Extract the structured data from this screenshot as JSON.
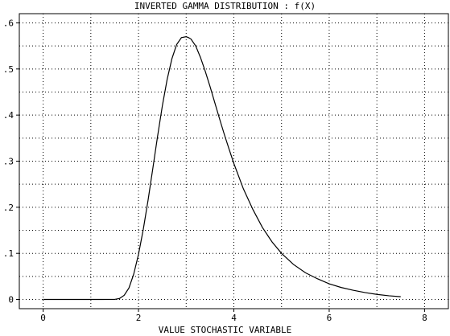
{
  "chart_data": {
    "type": "line",
    "title": "INVERTED GAMMA DISTRIBUTION : f(X)",
    "xlabel": "VALUE STOCHASTIC VARIABLE",
    "ylabel": "",
    "xlim": [
      -0.5,
      8.5
    ],
    "ylim": [
      -0.02,
      0.62
    ],
    "x_ticks": [
      0,
      2,
      4,
      6,
      8
    ],
    "x_tick_labels": [
      "0",
      "2",
      "4",
      "6",
      "8"
    ],
    "y_ticks": [
      0,
      0.1,
      0.2,
      0.3,
      0.4,
      0.5,
      0.6
    ],
    "y_tick_labels": [
      "0",
      ".1",
      ".2",
      ".3",
      ".4",
      ".5",
      ".6"
    ],
    "grid": true,
    "series": [
      {
        "x": [
          0,
          0.5,
          1.0,
          1.5,
          1.6,
          1.7,
          1.8,
          1.9,
          2.0,
          2.1,
          2.2,
          2.3,
          2.4,
          2.5,
          2.6,
          2.7,
          2.8,
          2.9,
          3.0,
          3.05,
          3.1,
          3.2,
          3.3,
          3.4,
          3.5,
          3.6,
          3.7,
          3.8,
          3.9,
          4.0,
          4.2,
          4.4,
          4.6,
          4.8,
          5.0,
          5.25,
          5.5,
          5.75,
          6.0,
          6.25,
          6.5,
          6.75,
          7.0,
          7.25,
          7.5
        ],
        "y": [
          0,
          0,
          0,
          0.0002,
          0.002,
          0.009,
          0.025,
          0.055,
          0.098,
          0.152,
          0.215,
          0.284,
          0.354,
          0.42,
          0.477,
          0.522,
          0.553,
          0.568,
          0.57,
          0.568,
          0.565,
          0.55,
          0.525,
          0.495,
          0.462,
          0.427,
          0.392,
          0.358,
          0.326,
          0.295,
          0.24,
          0.195,
          0.156,
          0.125,
          0.1,
          0.076,
          0.058,
          0.045,
          0.034,
          0.026,
          0.02,
          0.015,
          0.011,
          0.008,
          0.006
        ]
      }
    ]
  },
  "colors": {
    "line": "#000000",
    "grid": "#000000",
    "background": "#ffffff"
  }
}
